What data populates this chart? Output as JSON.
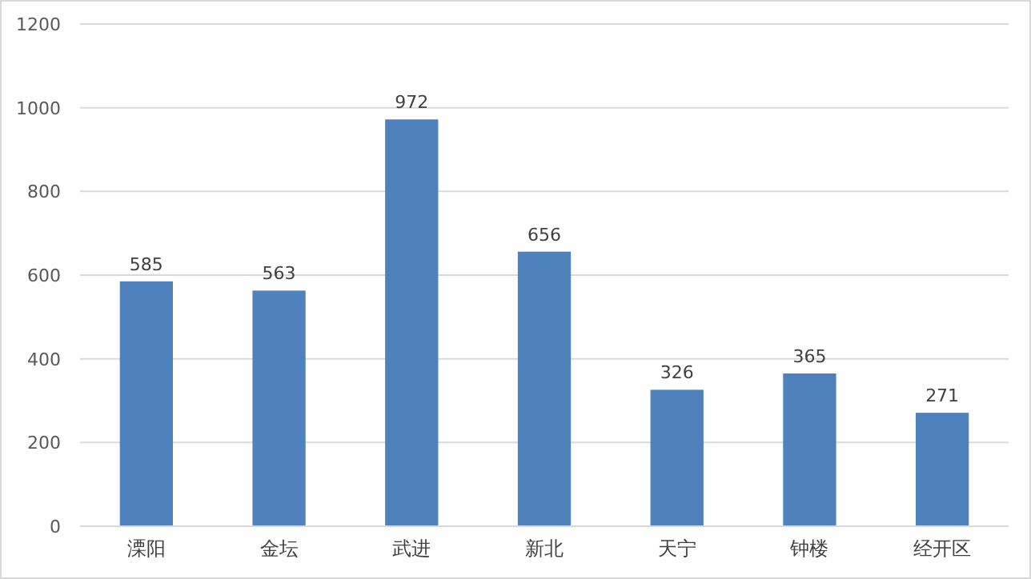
{
  "chart_data": {
    "type": "bar",
    "categories": [
      "溧阳",
      "金坛",
      "武进",
      "新北",
      "天宁",
      "钟楼",
      "经开区"
    ],
    "values": [
      585,
      563,
      972,
      656,
      326,
      365,
      271
    ],
    "color": "#4f81bd",
    "ylim": [
      0,
      1200
    ],
    "yticks": [
      0,
      200,
      400,
      600,
      800,
      1000,
      1200
    ],
    "grid": "y",
    "data_labels": true
  }
}
